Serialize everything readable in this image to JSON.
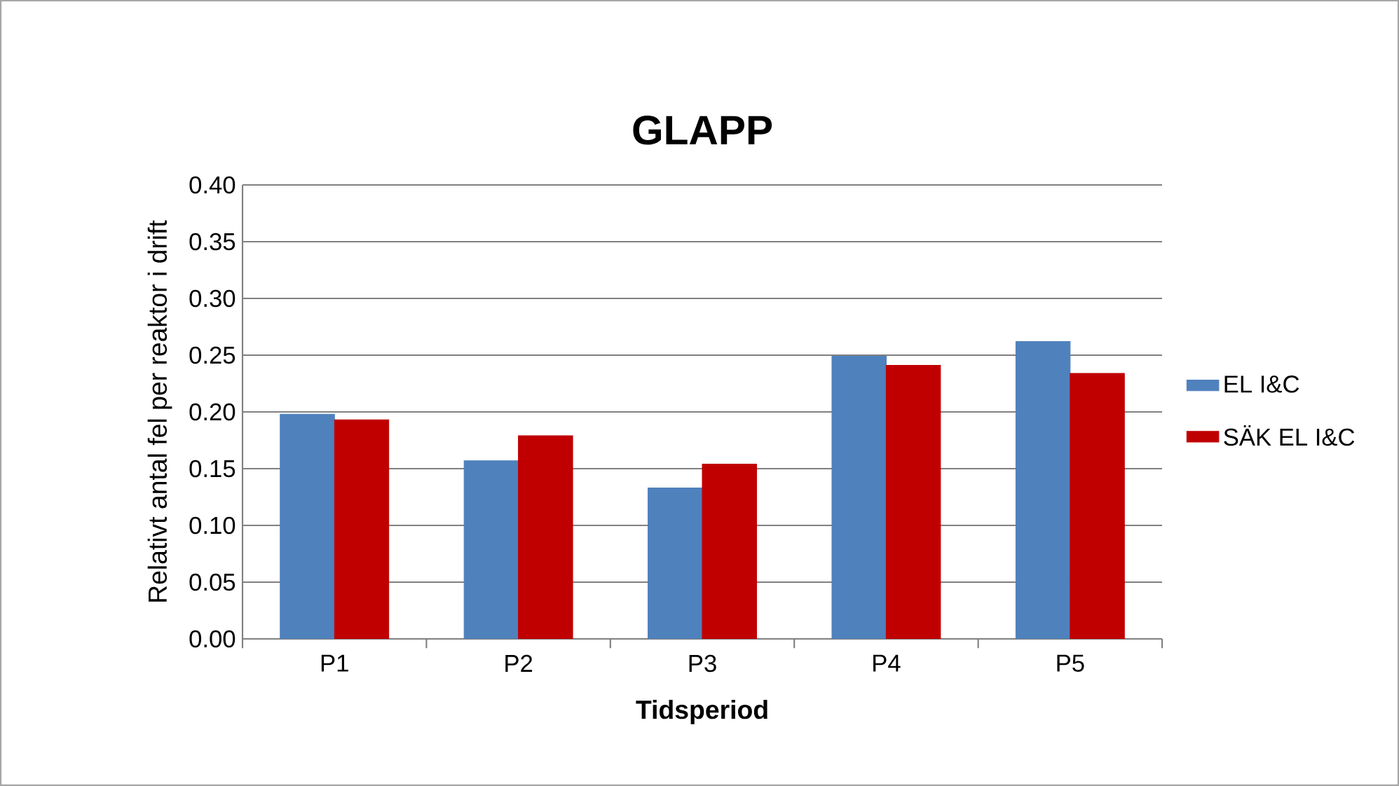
{
  "chart_data": {
    "type": "bar",
    "title": "GLAPP",
    "xlabel": "Tidsperiod",
    "ylabel": "Relativt antal fel per reaktor i drift",
    "categories": [
      "P1",
      "P2",
      "P3",
      "P4",
      "P5"
    ],
    "series": [
      {
        "name": "EL I&C",
        "color": "#4f81bd",
        "values": [
          0.198,
          0.157,
          0.133,
          0.249,
          0.262
        ]
      },
      {
        "name": "SÄK EL I&C",
        "color": "#c00000",
        "values": [
          0.193,
          0.179,
          0.154,
          0.241,
          0.234
        ]
      }
    ],
    "ylim": [
      0,
      0.4
    ],
    "yticks": [
      {
        "value": 0,
        "label": "0.00"
      },
      {
        "value": 0.05,
        "label": "0.05"
      },
      {
        "value": 0.1,
        "label": "0.10"
      },
      {
        "value": 0.15,
        "label": "0.15"
      },
      {
        "value": 0.2,
        "label": "0.20"
      },
      {
        "value": 0.25,
        "label": "0.25"
      },
      {
        "value": 0.3,
        "label": "0.30"
      },
      {
        "value": 0.35,
        "label": "0.35"
      },
      {
        "value": 0.4,
        "label": "0.40"
      }
    ],
    "grid": "y",
    "legend": "right"
  }
}
